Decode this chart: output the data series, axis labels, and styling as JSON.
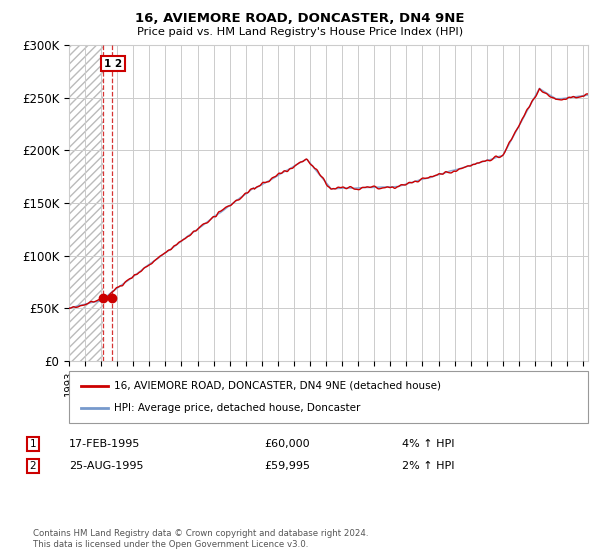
{
  "title": "16, AVIEMORE ROAD, DONCASTER, DN4 9NE",
  "subtitle": "Price paid vs. HM Land Registry's House Price Index (HPI)",
  "ylim": [
    0,
    300000
  ],
  "xlim_start": 1993.0,
  "xlim_end": 2025.3,
  "sale1_date": 1995.12,
  "sale1_price": 60000,
  "sale2_date": 1995.65,
  "sale2_price": 59995,
  "hpi_label": "HPI: Average price, detached house, Doncaster",
  "price_label": "16, AVIEMORE ROAD, DONCASTER, DN4 9NE (detached house)",
  "transaction1_date": "17-FEB-1995",
  "transaction1_price": "£60,000",
  "transaction1_hpi": "4% ↑ HPI",
  "transaction2_date": "25-AUG-1995",
  "transaction2_price": "£59,995",
  "transaction2_hpi": "2% ↑ HPI",
  "copyright": "Contains HM Land Registry data © Crown copyright and database right 2024.\nThis data is licensed under the Open Government Licence v3.0.",
  "red_color": "#cc0000",
  "blue_color": "#7799cc",
  "hatch_color": "#bbbbbb",
  "grid_color": "#cccccc",
  "bg_color": "#ffffff",
  "highlight_color": "#ddeeff"
}
